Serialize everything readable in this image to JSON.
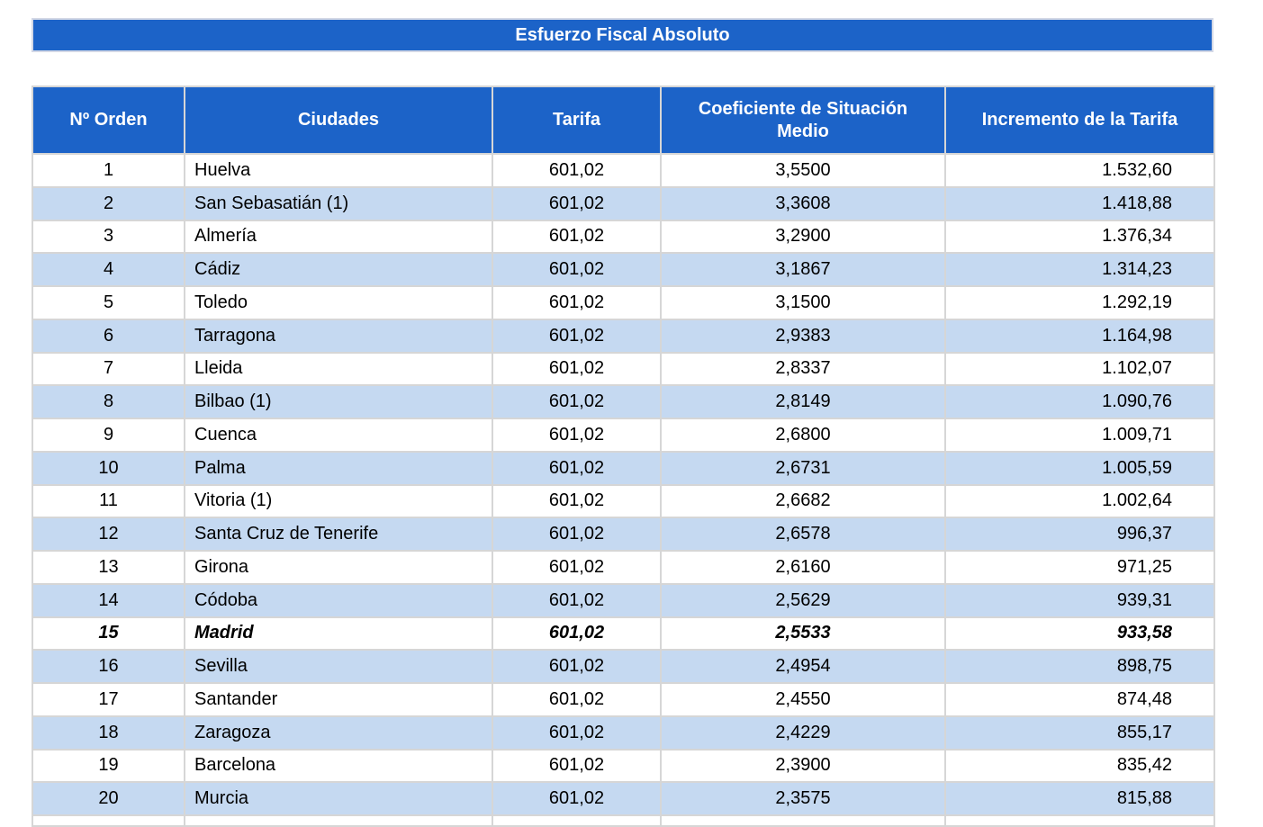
{
  "colors": {
    "header_blue": "#1C63C8",
    "stripe_light_blue": "#C5D9F1",
    "border_gray": "#D6D6D6",
    "header_text": "#ffffff",
    "body_text": "#000000"
  },
  "title_bar": {
    "text": "Esfuerzo Fiscal Absoluto"
  },
  "table": {
    "columns": [
      "Nº Orden",
      "Ciudades",
      "Tarifa",
      "Coeficiente de Situación Medio",
      "Incremento de la Tarifa"
    ],
    "rows": [
      {
        "orden": "1",
        "ciudad": "Huelva",
        "tarifa": "601,02",
        "coeficiente": "3,5500",
        "incremento": "1.532,60",
        "highlight": false
      },
      {
        "orden": "2",
        "ciudad": "San Sebasatián (1)",
        "tarifa": "601,02",
        "coeficiente": "3,3608",
        "incremento": "1.418,88",
        "highlight": false
      },
      {
        "orden": "3",
        "ciudad": "Almería",
        "tarifa": "601,02",
        "coeficiente": "3,2900",
        "incremento": "1.376,34",
        "highlight": false
      },
      {
        "orden": "4",
        "ciudad": "Cádiz",
        "tarifa": "601,02",
        "coeficiente": "3,1867",
        "incremento": "1.314,23",
        "highlight": false
      },
      {
        "orden": "5",
        "ciudad": "Toledo",
        "tarifa": "601,02",
        "coeficiente": "3,1500",
        "incremento": "1.292,19",
        "highlight": false
      },
      {
        "orden": "6",
        "ciudad": "Tarragona",
        "tarifa": "601,02",
        "coeficiente": "2,9383",
        "incremento": "1.164,98",
        "highlight": false
      },
      {
        "orden": "7",
        "ciudad": "Lleida",
        "tarifa": "601,02",
        "coeficiente": "2,8337",
        "incremento": "1.102,07",
        "highlight": false
      },
      {
        "orden": "8",
        "ciudad": "Bilbao (1)",
        "tarifa": "601,02",
        "coeficiente": "2,8149",
        "incremento": "1.090,76",
        "highlight": false
      },
      {
        "orden": "9",
        "ciudad": "Cuenca",
        "tarifa": "601,02",
        "coeficiente": "2,6800",
        "incremento": "1.009,71",
        "highlight": false
      },
      {
        "orden": "10",
        "ciudad": "Palma",
        "tarifa": "601,02",
        "coeficiente": "2,6731",
        "incremento": "1.005,59",
        "highlight": false
      },
      {
        "orden": "11",
        "ciudad": "Vitoria (1)",
        "tarifa": "601,02",
        "coeficiente": "2,6682",
        "incremento": "1.002,64",
        "highlight": false
      },
      {
        "orden": "12",
        "ciudad": "Santa Cruz de Tenerife",
        "tarifa": "601,02",
        "coeficiente": "2,6578",
        "incremento": "996,37",
        "highlight": false
      },
      {
        "orden": "13",
        "ciudad": "Girona",
        "tarifa": "601,02",
        "coeficiente": "2,6160",
        "incremento": "971,25",
        "highlight": false
      },
      {
        "orden": "14",
        "ciudad": "Códoba",
        "tarifa": "601,02",
        "coeficiente": "2,5629",
        "incremento": "939,31",
        "highlight": false
      },
      {
        "orden": "15",
        "ciudad": "Madrid",
        "tarifa": "601,02",
        "coeficiente": "2,5533",
        "incremento": "933,58",
        "highlight": true
      },
      {
        "orden": "16",
        "ciudad": "Sevilla",
        "tarifa": "601,02",
        "coeficiente": "2,4954",
        "incremento": "898,75",
        "highlight": false
      },
      {
        "orden": "17",
        "ciudad": "Santander",
        "tarifa": "601,02",
        "coeficiente": "2,4550",
        "incremento": "874,48",
        "highlight": false
      },
      {
        "orden": "18",
        "ciudad": "Zaragoza",
        "tarifa": "601,02",
        "coeficiente": "2,4229",
        "incremento": "855,17",
        "highlight": false
      },
      {
        "orden": "19",
        "ciudad": "Barcelona",
        "tarifa": "601,02",
        "coeficiente": "2,3900",
        "incremento": "835,42",
        "highlight": false
      },
      {
        "orden": "20",
        "ciudad": "Murcia",
        "tarifa": "601,02",
        "coeficiente": "2,3575",
        "incremento": "815,88",
        "highlight": false
      }
    ]
  }
}
